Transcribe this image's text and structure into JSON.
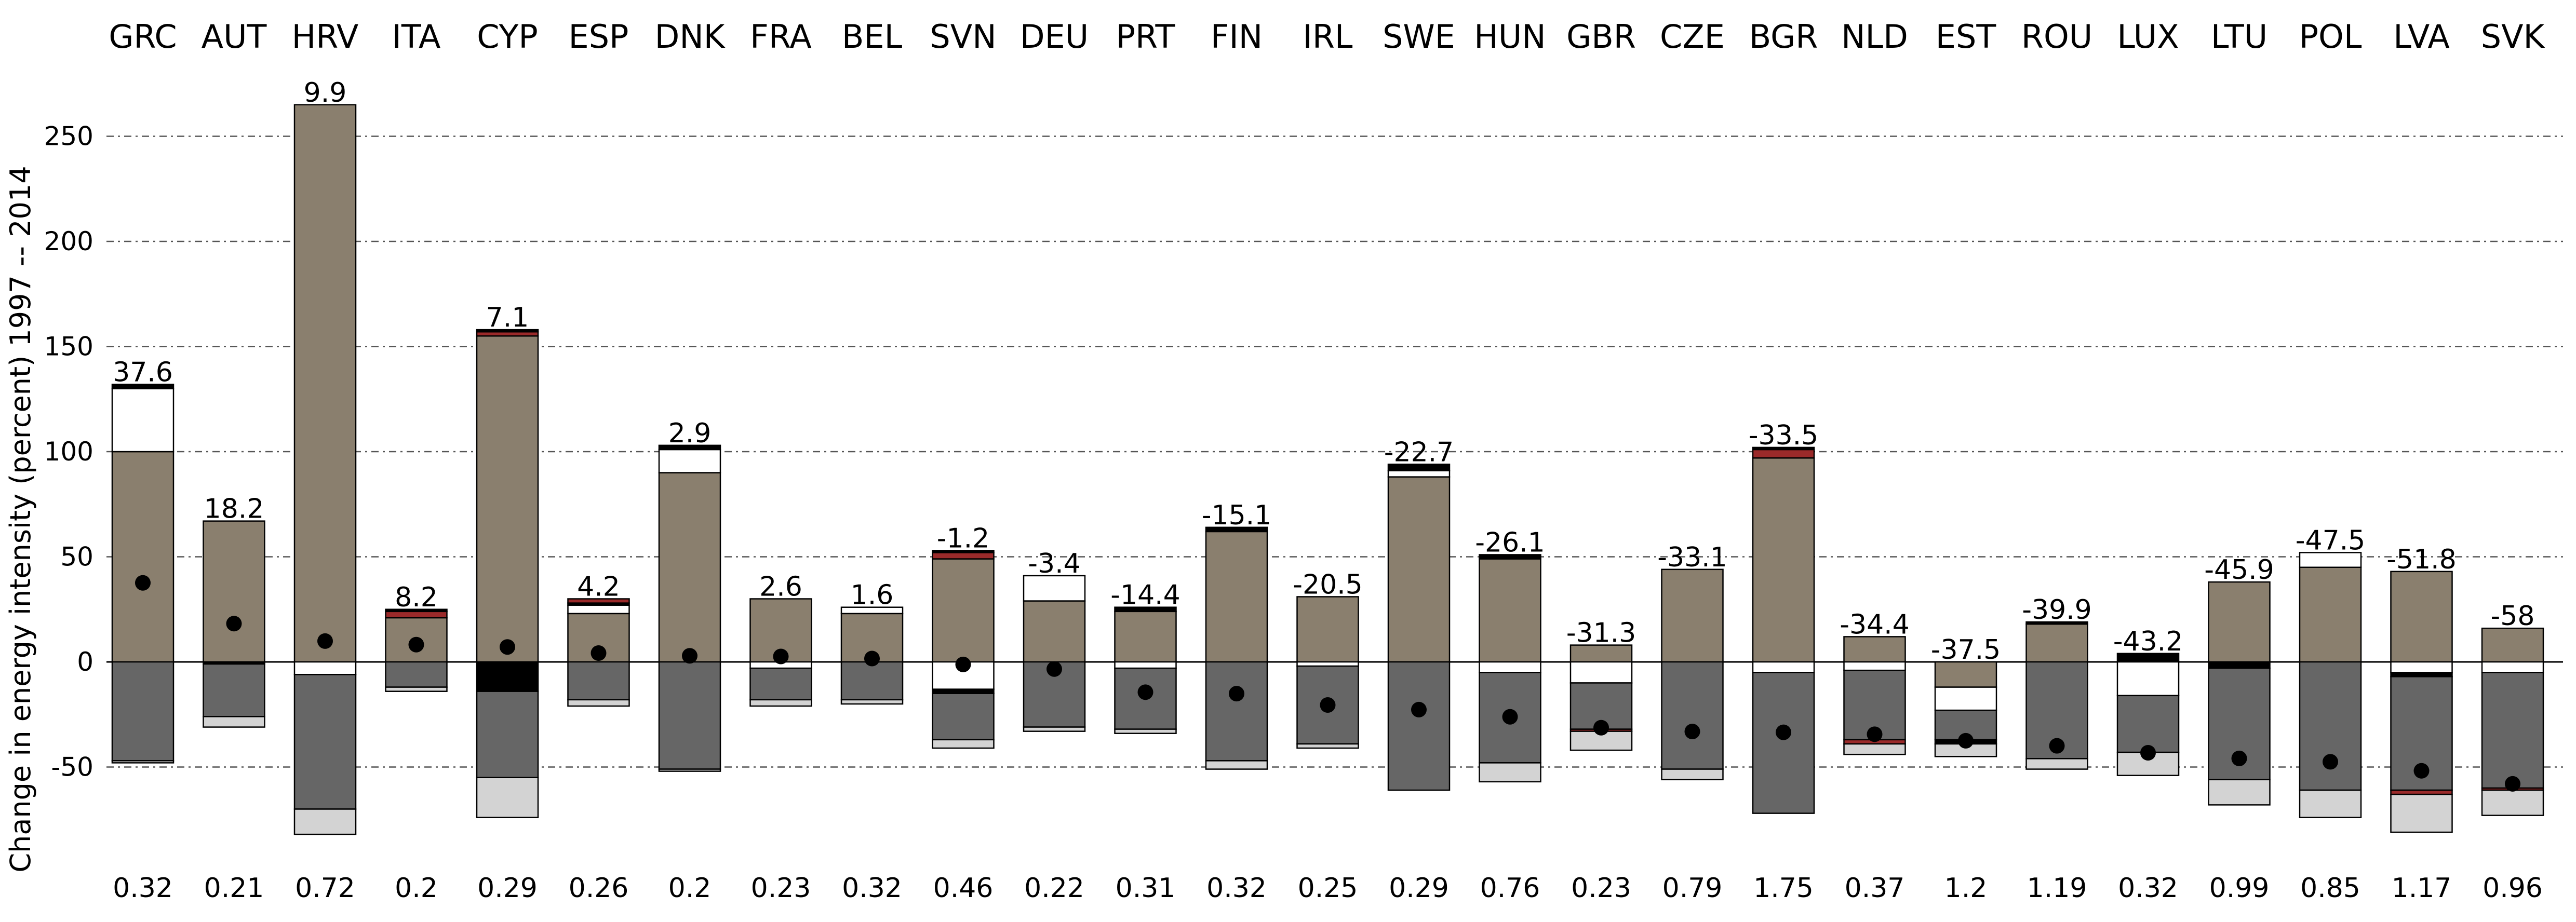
{
  "chart_data": {
    "type": "bar",
    "stacked": true,
    "title": "",
    "xlabel": "",
    "ylabel": "Change in energy intensity (percent) 1997 -- 2014",
    "ylim": [
      -83,
      275
    ],
    "yticks": [
      -50,
      0,
      50,
      100,
      150,
      200,
      250
    ],
    "grid": "horizontal dashed",
    "legend": "none",
    "colors": {
      "brown": "#8a7f6e",
      "dark_grey": "#666666",
      "light_grey": "#d3d3d3",
      "white": "#ffffff",
      "black": "#000000",
      "red": "#9a2a2a",
      "dot": "#000000"
    },
    "categories": [
      "GRC",
      "AUT",
      "HRV",
      "ITA",
      "CYP",
      "ESP",
      "DNK",
      "FRA",
      "BEL",
      "SVN",
      "DEU",
      "PRT",
      "FIN",
      "IRL",
      "SWE",
      "HUN",
      "GBR",
      "CZE",
      "BGR",
      "NLD",
      "EST",
      "ROU",
      "LUX",
      "LTU",
      "POL",
      "LVA",
      "SVK"
    ],
    "total_labels": [
      "37.6",
      "18.2",
      "9.9",
      "8.2",
      "7.1",
      "4.2",
      "2.9",
      "2.6",
      "1.6",
      "-1.2",
      "-3.4",
      "-14.4",
      "-15.1",
      "-20.5",
      "-22.7",
      "-26.1",
      "-31.3",
      "-33.1",
      "-33.5",
      "-34.4",
      "-37.5",
      "-39.9",
      "-43.2",
      "-45.9",
      "-47.5",
      "-51.8",
      "-58"
    ],
    "totals": [
      37.6,
      18.2,
      9.9,
      8.2,
      7.1,
      4.2,
      2.9,
      2.6,
      1.6,
      -1.2,
      -3.4,
      -14.4,
      -15.1,
      -20.5,
      -22.7,
      -26.1,
      -31.3,
      -33.1,
      -33.5,
      -34.4,
      -37.5,
      -39.9,
      -43.2,
      -45.9,
      -47.5,
      -51.8,
      -58
    ],
    "bottom_labels": [
      "0.32",
      "0.21",
      "0.72",
      "0.2",
      "0.29",
      "0.26",
      "0.2",
      "0.23",
      "0.32",
      "0.46",
      "0.22",
      "0.31",
      "0.32",
      "0.25",
      "0.29",
      "0.76",
      "0.23",
      "0.79",
      "1.75",
      "0.37",
      "1.2",
      "1.19",
      "0.32",
      "0.99",
      "0.85",
      "1.17",
      "0.96"
    ],
    "bars": [
      {
        "pos": [
          [
            "brown",
            100
          ],
          [
            "white",
            30
          ],
          [
            "black",
            2
          ]
        ],
        "neg": [
          [
            "dark_grey",
            -47
          ],
          [
            "light_grey",
            -1
          ]
        ]
      },
      {
        "pos": [
          [
            "brown",
            67
          ]
        ],
        "neg": [
          [
            "black",
            -1
          ],
          [
            "dark_grey",
            -25
          ],
          [
            "light_grey",
            -5
          ]
        ]
      },
      {
        "pos": [
          [
            "brown",
            265
          ]
        ],
        "neg": [
          [
            "white",
            -6
          ],
          [
            "dark_grey",
            -64
          ],
          [
            "light_grey",
            -12
          ]
        ]
      },
      {
        "pos": [
          [
            "brown",
            21
          ],
          [
            "red",
            3
          ],
          [
            "black",
            1
          ]
        ],
        "neg": [
          [
            "dark_grey",
            -12
          ],
          [
            "light_grey",
            -2
          ]
        ]
      },
      {
        "pos": [
          [
            "brown",
            155
          ],
          [
            "red",
            2
          ],
          [
            "black",
            1
          ]
        ],
        "neg": [
          [
            "black",
            -14
          ],
          [
            "dark_grey",
            -41
          ],
          [
            "light_grey",
            -19
          ]
        ]
      },
      {
        "pos": [
          [
            "brown",
            23
          ],
          [
            "white",
            4
          ],
          [
            "black",
            1
          ],
          [
            "red",
            2
          ]
        ],
        "neg": [
          [
            "dark_grey",
            -18
          ],
          [
            "light_grey",
            -3
          ]
        ]
      },
      {
        "pos": [
          [
            "brown",
            90
          ],
          [
            "white",
            11
          ],
          [
            "black",
            2
          ]
        ],
        "neg": [
          [
            "dark_grey",
            -51
          ],
          [
            "light_grey",
            -1
          ]
        ]
      },
      {
        "pos": [
          [
            "brown",
            30
          ]
        ],
        "neg": [
          [
            "white",
            -3
          ],
          [
            "dark_grey",
            -15
          ],
          [
            "light_grey",
            -3
          ]
        ]
      },
      {
        "pos": [
          [
            "brown",
            23
          ],
          [
            "white",
            3
          ]
        ],
        "neg": [
          [
            "dark_grey",
            -18
          ],
          [
            "light_grey",
            -2
          ]
        ]
      },
      {
        "pos": [
          [
            "brown",
            49
          ],
          [
            "red",
            3
          ],
          [
            "black",
            1
          ]
        ],
        "neg": [
          [
            "white",
            -13
          ],
          [
            "black",
            -2
          ],
          [
            "dark_grey",
            -22
          ],
          [
            "light_grey",
            -4
          ]
        ]
      },
      {
        "pos": [
          [
            "brown",
            29
          ],
          [
            "white",
            12
          ]
        ],
        "neg": [
          [
            "dark_grey",
            -31
          ],
          [
            "light_grey",
            -2
          ]
        ]
      },
      {
        "pos": [
          [
            "brown",
            24
          ],
          [
            "black",
            2
          ]
        ],
        "neg": [
          [
            "white",
            -3
          ],
          [
            "dark_grey",
            -29
          ],
          [
            "light_grey",
            -2
          ]
        ]
      },
      {
        "pos": [
          [
            "brown",
            62
          ],
          [
            "black",
            2
          ]
        ],
        "neg": [
          [
            "dark_grey",
            -47
          ],
          [
            "light_grey",
            -4
          ]
        ]
      },
      {
        "pos": [
          [
            "brown",
            31
          ]
        ],
        "neg": [
          [
            "white",
            -2
          ],
          [
            "dark_grey",
            -37
          ],
          [
            "light_grey",
            -2
          ]
        ]
      },
      {
        "pos": [
          [
            "brown",
            88
          ],
          [
            "white",
            3
          ],
          [
            "black",
            3
          ]
        ],
        "neg": [
          [
            "dark_grey",
            -61
          ]
        ]
      },
      {
        "pos": [
          [
            "brown",
            49
          ],
          [
            "black",
            2
          ]
        ],
        "neg": [
          [
            "white",
            -5
          ],
          [
            "dark_grey",
            -43
          ],
          [
            "light_grey",
            -9
          ]
        ]
      },
      {
        "pos": [
          [
            "brown",
            8
          ]
        ],
        "neg": [
          [
            "white",
            -10
          ],
          [
            "dark_grey",
            -22
          ],
          [
            "red",
            -1
          ],
          [
            "light_grey",
            -9
          ]
        ]
      },
      {
        "pos": [
          [
            "brown",
            44
          ]
        ],
        "neg": [
          [
            "dark_grey",
            -51
          ],
          [
            "light_grey",
            -5
          ]
        ]
      },
      {
        "pos": [
          [
            "brown",
            97
          ],
          [
            "red",
            4
          ],
          [
            "black",
            1
          ]
        ],
        "neg": [
          [
            "white",
            -5
          ],
          [
            "dark_grey",
            -67
          ]
        ]
      },
      {
        "pos": [
          [
            "brown",
            12
          ]
        ],
        "neg": [
          [
            "white",
            -4
          ],
          [
            "dark_grey",
            -33
          ],
          [
            "red",
            -2
          ],
          [
            "light_grey",
            -5
          ]
        ]
      },
      {
        "pos": [
          [
            "brown",
            0
          ]
        ],
        "neg": [
          [
            "brown",
            -12
          ],
          [
            "white",
            -11
          ],
          [
            "dark_grey",
            -14
          ],
          [
            "black",
            -2
          ],
          [
            "light_grey",
            -6
          ]
        ]
      },
      {
        "pos": [
          [
            "brown",
            18
          ],
          [
            "black",
            1
          ]
        ],
        "neg": [
          [
            "dark_grey",
            -46
          ],
          [
            "light_grey",
            -5
          ]
        ]
      },
      {
        "pos": [
          [
            "black",
            4
          ]
        ],
        "neg": [
          [
            "white",
            -16
          ],
          [
            "dark_grey",
            -27
          ],
          [
            "light_grey",
            -11
          ]
        ]
      },
      {
        "pos": [
          [
            "brown",
            38
          ]
        ],
        "neg": [
          [
            "black",
            -3
          ],
          [
            "dark_grey",
            -53
          ],
          [
            "light_grey",
            -12
          ]
        ]
      },
      {
        "pos": [
          [
            "brown",
            45
          ],
          [
            "white",
            7
          ]
        ],
        "neg": [
          [
            "dark_grey",
            -61
          ],
          [
            "light_grey",
            -13
          ]
        ]
      },
      {
        "pos": [
          [
            "brown",
            43
          ]
        ],
        "neg": [
          [
            "white",
            -5
          ],
          [
            "black",
            -2
          ],
          [
            "dark_grey",
            -54
          ],
          [
            "red",
            -2
          ],
          [
            "light_grey",
            -18
          ]
        ]
      },
      {
        "pos": [
          [
            "brown",
            16
          ]
        ],
        "neg": [
          [
            "white",
            -5
          ],
          [
            "dark_grey",
            -55
          ],
          [
            "red",
            -1
          ],
          [
            "light_grey",
            -12
          ]
        ]
      }
    ]
  }
}
